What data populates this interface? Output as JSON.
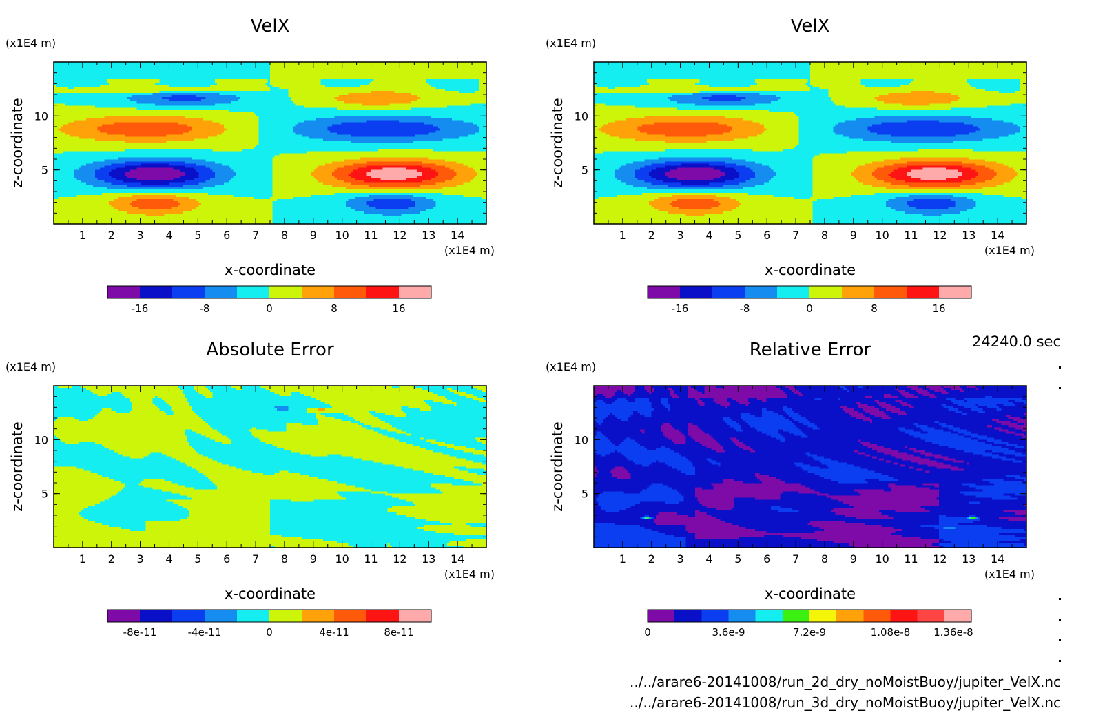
{
  "palettes": {
    "velx": [
      "#7e0aa8",
      "#0a10c8",
      "#0a3ef0",
      "#148cf0",
      "#14eef0",
      "#cdf50a",
      "#ffa20a",
      "#ff5a0a",
      "#ff1414",
      "#ffaaaa"
    ],
    "relerr": [
      "#7e0aa8",
      "#0a10c8",
      "#0a3ef0",
      "#148cf0",
      "#14eef0",
      "#3cf014",
      "#f5f50a",
      "#ffa20a",
      "#ff5a0a",
      "#ff1414",
      "#ff4444",
      "#ffaaaa"
    ]
  },
  "footer": {
    "time": "24240.0 sec",
    "file1": "../../arare6-20141008/run_2d_dry_noMoistBuoy/jupiter_VelX.nc",
    "file2": "../../arare6-20141008/run_3d_dry_noMoistBuoy/jupiter_VelX.nc"
  },
  "chart_data": [
    {
      "type": "heatmap",
      "title": "VelX",
      "xlabel": "x-coordinate",
      "ylabel": "z-coordinate",
      "x_units": "(x1E4 m)",
      "y_units": "(x1E4 m)",
      "x_ticks": [
        "1",
        "2",
        "3",
        "4",
        "5",
        "6",
        "7",
        "8",
        "9",
        "10",
        "11",
        "12",
        "13",
        "14"
      ],
      "y_ticks": [
        "5",
        "10"
      ],
      "xlim": [
        0,
        15
      ],
      "ylim": [
        0,
        15
      ],
      "field": "velx",
      "colorbar": {
        "palette": "velx",
        "range": [
          -20,
          20
        ],
        "tick_values": [
          -16,
          -8,
          0,
          8,
          16
        ],
        "tick_labels": [
          "-16",
          "-8",
          "0",
          "8",
          "16"
        ]
      }
    },
    {
      "type": "heatmap",
      "title": "VelX",
      "xlabel": "x-coordinate",
      "ylabel": "z-coordinate",
      "x_units": "(x1E4 m)",
      "y_units": "(x1E4 m)",
      "x_ticks": [
        "1",
        "2",
        "3",
        "4",
        "5",
        "6",
        "7",
        "8",
        "9",
        "10",
        "11",
        "12",
        "13",
        "14"
      ],
      "y_ticks": [
        "5",
        "10"
      ],
      "xlim": [
        0,
        15
      ],
      "ylim": [
        0,
        15
      ],
      "field": "velx",
      "colorbar": {
        "palette": "velx",
        "range": [
          -20,
          20
        ],
        "tick_values": [
          -16,
          -8,
          0,
          8,
          16
        ],
        "tick_labels": [
          "-16",
          "-8",
          "0",
          "8",
          "16"
        ]
      }
    },
    {
      "type": "heatmap",
      "title": "Absolute Error",
      "xlabel": "x-coordinate",
      "ylabel": "z-coordinate",
      "x_units": "(x1E4 m)",
      "y_units": "(x1E4 m)",
      "x_ticks": [
        "1",
        "2",
        "3",
        "4",
        "5",
        "6",
        "7",
        "8",
        "9",
        "10",
        "11",
        "12",
        "13",
        "14"
      ],
      "y_ticks": [
        "5",
        "10"
      ],
      "xlim": [
        0,
        15
      ],
      "ylim": [
        0,
        15
      ],
      "field": "abserr",
      "colorbar": {
        "palette": "velx",
        "range": [
          -1e-10,
          1e-10
        ],
        "tick_values": [
          -8e-11,
          -4e-11,
          0,
          4e-11,
          8e-11
        ],
        "tick_labels": [
          "-8e-11",
          "-4e-11",
          "0",
          "4e-11",
          "8e-11"
        ]
      }
    },
    {
      "type": "heatmap",
      "title": "Relative Error",
      "xlabel": "x-coordinate",
      "ylabel": "z-coordinate",
      "x_units": "(x1E4 m)",
      "y_units": "(x1E4 m)",
      "x_ticks": [
        "1",
        "2",
        "3",
        "4",
        "5",
        "6",
        "7",
        "8",
        "9",
        "10",
        "11",
        "12",
        "13",
        "14"
      ],
      "y_ticks": [
        "5",
        "10"
      ],
      "xlim": [
        0,
        15
      ],
      "ylim": [
        0,
        15
      ],
      "field": "relerr",
      "colorbar": {
        "palette": "relerr",
        "range": [
          0,
          1.44e-08
        ],
        "tick_values": [
          0,
          3.6e-09,
          7.2e-09,
          1.08e-08,
          1.36e-08
        ],
        "tick_labels": [
          "0",
          "3.6e-9",
          "7.2e-9",
          "1.08e-8",
          "1.36e-8"
        ]
      }
    }
  ]
}
